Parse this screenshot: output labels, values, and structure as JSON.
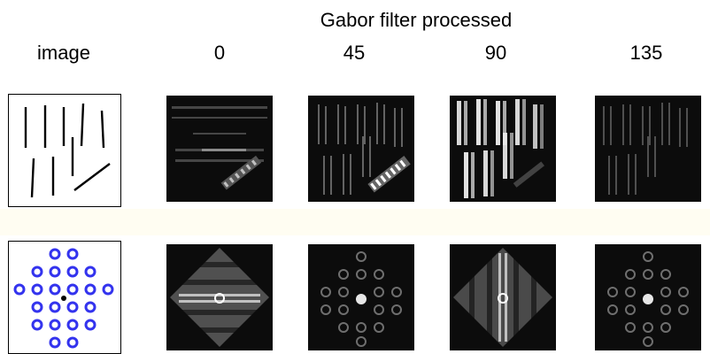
{
  "header": {
    "title": "Gabor filter processed",
    "image_label": "image",
    "angles": [
      "0",
      "45",
      "90",
      "135"
    ]
  },
  "colors": {
    "background": "#ffffff",
    "band": "#fffdf2",
    "panel_dark": "#111111",
    "ring_blue": "#3333ee"
  }
}
